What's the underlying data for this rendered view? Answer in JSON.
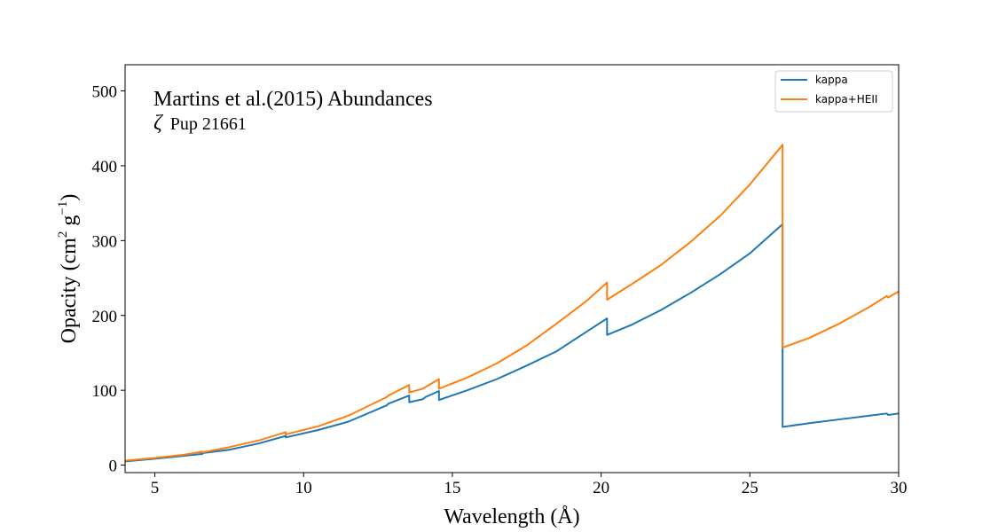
{
  "chart_data": {
    "type": "line",
    "annotation_title": "Martins et al.(2015) Abundances",
    "annotation_subtitle_symbol": "ζ",
    "annotation_subtitle": "Pup 21661",
    "xlabel": "Wavelength (Å)",
    "ylabel_main": "Opacity (cm",
    "ylabel_exp1": "2",
    "ylabel_mid": " g",
    "ylabel_exp2": "−1",
    "ylabel_end": ")",
    "xlim": [
      4,
      30
    ],
    "ylim": [
      -10,
      535
    ],
    "xticks": [
      5,
      10,
      15,
      20,
      25,
      30
    ],
    "yticks": [
      0,
      100,
      200,
      300,
      400,
      500
    ],
    "grid": false,
    "legend_position": "top-right",
    "series": [
      {
        "name": "kappa",
        "color": "#1f77b4",
        "points": [
          [
            4.0,
            5
          ],
          [
            5.0,
            8.5
          ],
          [
            6.0,
            12.5
          ],
          [
            6.6,
            15
          ],
          [
            6.6,
            16
          ],
          [
            7.5,
            20.5
          ],
          [
            8.5,
            29
          ],
          [
            9.4,
            39
          ],
          [
            9.4,
            37
          ],
          [
            10.5,
            47
          ],
          [
            11.5,
            58
          ],
          [
            12.8,
            80
          ],
          [
            12.85,
            82
          ],
          [
            13.55,
            93
          ],
          [
            13.55,
            84
          ],
          [
            14.0,
            88
          ],
          [
            14.1,
            91
          ],
          [
            14.55,
            99
          ],
          [
            14.55,
            87
          ],
          [
            15.5,
            100
          ],
          [
            16.5,
            115
          ],
          [
            17.5,
            133
          ],
          [
            18.5,
            152
          ],
          [
            19.5,
            178
          ],
          [
            20.2,
            196
          ],
          [
            20.2,
            174
          ],
          [
            21.0,
            187
          ],
          [
            22.0,
            207
          ],
          [
            23.0,
            230
          ],
          [
            24.0,
            255
          ],
          [
            25.0,
            283
          ],
          [
            26.1,
            322
          ],
          [
            26.1,
            51
          ],
          [
            27.0,
            56
          ],
          [
            28.0,
            61
          ],
          [
            29.0,
            66
          ],
          [
            29.6,
            69
          ],
          [
            29.65,
            67
          ],
          [
            30.0,
            69
          ]
        ]
      },
      {
        "name": "kappa+HEII",
        "color": "#ff7f0e",
        "points": [
          [
            4.0,
            6
          ],
          [
            5.0,
            9.5
          ],
          [
            6.0,
            14
          ],
          [
            6.6,
            18
          ],
          [
            6.6,
            17
          ],
          [
            7.5,
            24
          ],
          [
            8.5,
            33
          ],
          [
            9.4,
            44
          ],
          [
            9.4,
            41
          ],
          [
            10.5,
            52
          ],
          [
            11.5,
            66
          ],
          [
            12.8,
            91
          ],
          [
            12.85,
            93
          ],
          [
            13.55,
            107
          ],
          [
            13.55,
            97
          ],
          [
            14.0,
            102
          ],
          [
            14.55,
            115
          ],
          [
            14.55,
            102
          ],
          [
            15.5,
            117
          ],
          [
            16.5,
            136
          ],
          [
            17.5,
            160
          ],
          [
            18.5,
            189
          ],
          [
            19.5,
            219
          ],
          [
            20.2,
            244
          ],
          [
            20.2,
            221
          ],
          [
            21.0,
            241
          ],
          [
            22.0,
            267
          ],
          [
            23.0,
            298
          ],
          [
            24.0,
            333
          ],
          [
            25.0,
            375
          ],
          [
            26.1,
            428
          ],
          [
            26.1,
            157
          ],
          [
            27.0,
            170
          ],
          [
            28.0,
            189
          ],
          [
            29.0,
            211
          ],
          [
            29.6,
            226
          ],
          [
            29.65,
            224
          ],
          [
            30.0,
            232
          ]
        ]
      }
    ]
  }
}
